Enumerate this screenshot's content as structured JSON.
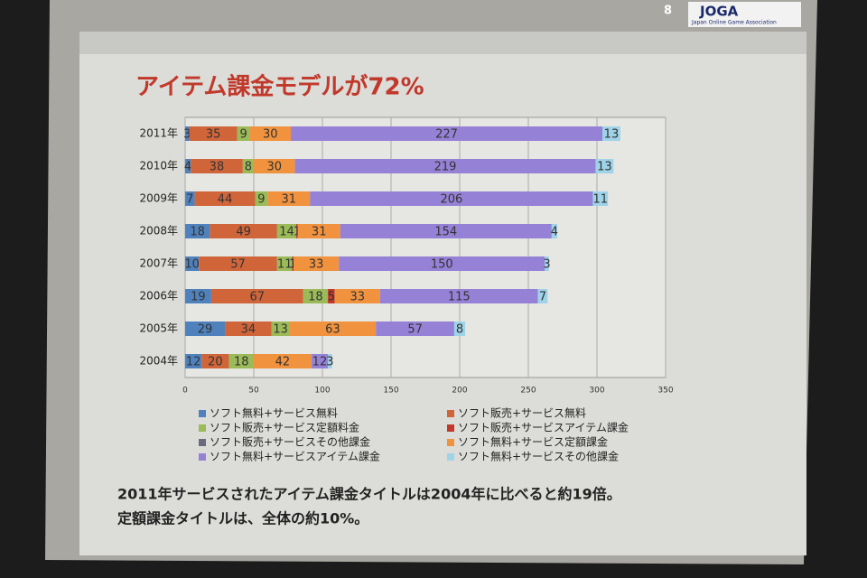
{
  "chart_data": {
    "type": "stacked-bar-horizontal",
    "title": "アイテム課金モデルが72%",
    "categories": [
      "2011年",
      "2010年",
      "2009年",
      "2008年",
      "2007年",
      "2006年",
      "2005年",
      "2004年"
    ],
    "series": [
      {
        "name": "ソフト無料+サービス無料",
        "color": "#4f81bd",
        "values": [
          3,
          4,
          7,
          18,
          10,
          19,
          29,
          12
        ]
      },
      {
        "name": "ソフト販売+サービス無料",
        "color": "#d0653a",
        "values": [
          35,
          38,
          44,
          49,
          57,
          67,
          34,
          20
        ]
      },
      {
        "name": "ソフト販売+サービス定額料金",
        "color": "#9bbb59",
        "values": [
          9,
          8,
          9,
          14,
          11,
          18,
          13,
          18
        ]
      },
      {
        "name": "ソフト販売+サービスアイテム課金",
        "color": "#c0392b",
        "values": [
          null,
          null,
          null,
          1,
          1,
          5,
          null,
          null
        ]
      },
      {
        "name": "ソフト販売+サービスその他課金",
        "color": "#6b6b80",
        "values": [
          null,
          null,
          null,
          null,
          null,
          null,
          null,
          null
        ]
      },
      {
        "name": "ソフト無料+サービス定額課金",
        "color": "#f0923e",
        "values": [
          30,
          30,
          31,
          31,
          33,
          33,
          63,
          42
        ]
      },
      {
        "name": "ソフト無料+サービスアイテム課金",
        "color": "#9582d6",
        "values": [
          227,
          219,
          206,
          154,
          150,
          115,
          57,
          12
        ]
      },
      {
        "name": "ソフト無料+サービスその他課金",
        "color": "#9fd3e8",
        "values": [
          13,
          13,
          11,
          4,
          3,
          7,
          8,
          3
        ]
      }
    ],
    "xlim": [
      0,
      350
    ],
    "xticks": [
      0,
      50,
      100,
      150,
      200,
      250,
      300,
      350
    ],
    "grid": true
  },
  "slide": {
    "page_number": "8",
    "logo": "JOGA",
    "logo_subtitle": "Japan Online Game Association",
    "caption": [
      "2011年サービスされたアイテム課金タイトルは2004年に比べると約19倍。",
      "定額課金タイトルは、全体の約10%。"
    ]
  }
}
